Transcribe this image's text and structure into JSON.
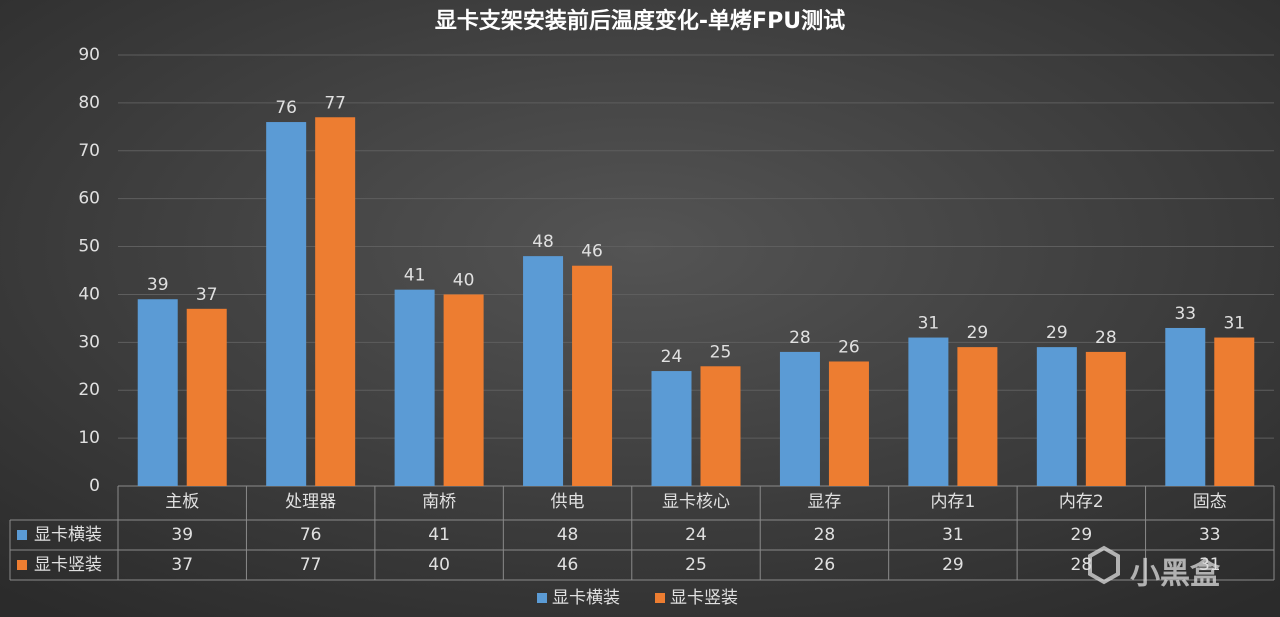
{
  "chart_data": {
    "type": "bar",
    "title": "显卡支架安装前后温度变化-单烤FPU测试",
    "categories": [
      "主板",
      "处理器",
      "南桥",
      "供电",
      "显卡核心",
      "显存",
      "内存1",
      "内存2",
      "固态"
    ],
    "series": [
      {
        "name": "显卡横装",
        "color": "#5b9bd5",
        "values": [
          39,
          76,
          41,
          48,
          24,
          28,
          31,
          29,
          33
        ]
      },
      {
        "name": "显卡竖装",
        "color": "#ed7d31",
        "values": [
          37,
          77,
          40,
          46,
          25,
          26,
          29,
          28,
          31
        ]
      }
    ],
    "ylim": [
      0,
      90
    ],
    "yticks": [
      0,
      10,
      20,
      30,
      40,
      50,
      60,
      70,
      80,
      90
    ],
    "grid": true,
    "watermark": "小黑盒"
  }
}
